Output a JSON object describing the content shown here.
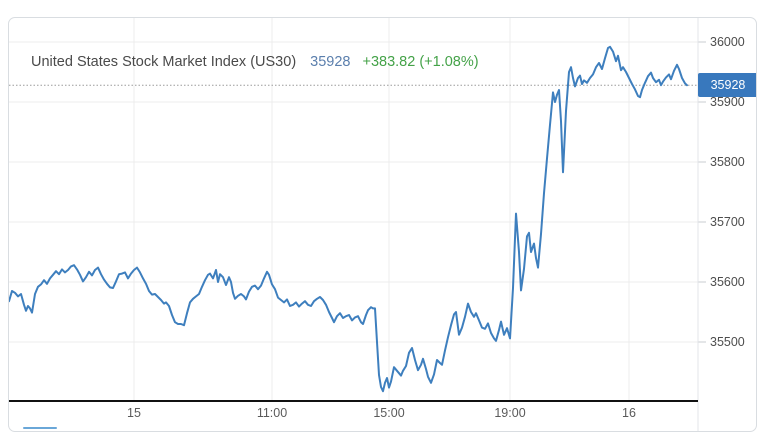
{
  "header": {
    "title": "United States Stock Market Index (US30)",
    "price": "35928",
    "change": "+383.82 (+1.08%)"
  },
  "colors": {
    "series_line": "#3e7fbe",
    "badge_bg": "#3878bd",
    "badge_text": "#ffffff",
    "title_text": "#4a4a4a",
    "price_text": "#5b7fad",
    "change_text": "#44a248",
    "grid": "#ececec",
    "separator": "#e3e5e8",
    "tick": "#c8ccd0",
    "dotted_line": "#9b9b9b",
    "axis_line": "#111111",
    "panel_border": "#d9dde1",
    "accent_underline": "#6aa7d8"
  },
  "chart_data": {
    "type": "line",
    "title": "United States Stock Market Index (US30)",
    "series_name": "US30",
    "last_price": 35928,
    "change_abs": 383.82,
    "change_pct": 1.08,
    "grid": true,
    "legend": false,
    "y_axis_side": "right",
    "ylim": [
      35402,
      36040
    ],
    "y_ticks": [
      36000,
      35900,
      35800,
      35700,
      35600,
      35500
    ],
    "current_price_line": 35928,
    "x_ticks": [
      {
        "label": "15",
        "px": 133
      },
      {
        "label": "11:00",
        "px": 271
      },
      {
        "label": "15:00",
        "px": 388
      },
      {
        "label": "19:00",
        "px": 509
      },
      {
        "label": "16",
        "px": 628
      }
    ],
    "points": [
      [
        8,
        35568
      ],
      [
        11,
        35585
      ],
      [
        14,
        35582
      ],
      [
        17,
        35576
      ],
      [
        20,
        35580
      ],
      [
        23,
        35562
      ],
      [
        25,
        35552
      ],
      [
        27,
        35560
      ],
      [
        29,
        35556
      ],
      [
        31,
        35549
      ],
      [
        34,
        35580
      ],
      [
        37,
        35592
      ],
      [
        40,
        35596
      ],
      [
        43,
        35603
      ],
      [
        46,
        35597
      ],
      [
        49,
        35606
      ],
      [
        52,
        35612
      ],
      [
        55,
        35618
      ],
      [
        58,
        35613
      ],
      [
        61,
        35621
      ],
      [
        64,
        35616
      ],
      [
        67,
        35620
      ],
      [
        70,
        35626
      ],
      [
        73,
        35628
      ],
      [
        76,
        35621
      ],
      [
        79,
        35612
      ],
      [
        82,
        35601
      ],
      [
        85,
        35608
      ],
      [
        88,
        35617
      ],
      [
        91,
        35611
      ],
      [
        94,
        35620
      ],
      [
        97,
        35624
      ],
      [
        100,
        35613
      ],
      [
        103,
        35604
      ],
      [
        106,
        35597
      ],
      [
        109,
        35591
      ],
      [
        112,
        35590
      ],
      [
        115,
        35601
      ],
      [
        118,
        35613
      ],
      [
        121,
        35614
      ],
      [
        124,
        35616
      ],
      [
        127,
        35606
      ],
      [
        130,
        35614
      ],
      [
        133,
        35620
      ],
      [
        136,
        35624
      ],
      [
        139,
        35616
      ],
      [
        142,
        35606
      ],
      [
        145,
        35597
      ],
      [
        148,
        35585
      ],
      [
        151,
        35579
      ],
      [
        154,
        35580
      ],
      [
        157,
        35575
      ],
      [
        160,
        35570
      ],
      [
        163,
        35564
      ],
      [
        165,
        35566
      ],
      [
        168,
        35560
      ],
      [
        171,
        35545
      ],
      [
        174,
        35533
      ],
      [
        177,
        35530
      ],
      [
        180,
        35530
      ],
      [
        183,
        35528
      ],
      [
        186,
        35548
      ],
      [
        189,
        35566
      ],
      [
        192,
        35572
      ],
      [
        195,
        35576
      ],
      [
        198,
        35580
      ],
      [
        201,
        35592
      ],
      [
        204,
        35603
      ],
      [
        207,
        35612
      ],
      [
        209,
        35614
      ],
      [
        212,
        35606
      ],
      [
        215,
        35620
      ],
      [
        217,
        35600
      ],
      [
        219,
        35613
      ],
      [
        222,
        35608
      ],
      [
        225,
        35595
      ],
      [
        228,
        35608
      ],
      [
        230,
        35600
      ],
      [
        232,
        35582
      ],
      [
        234,
        35572
      ],
      [
        237,
        35577
      ],
      [
        240,
        35580
      ],
      [
        243,
        35576
      ],
      [
        245,
        35571
      ],
      [
        248,
        35584
      ],
      [
        251,
        35592
      ],
      [
        254,
        35594
      ],
      [
        257,
        35588
      ],
      [
        260,
        35594
      ],
      [
        263,
        35606
      ],
      [
        266,
        35617
      ],
      [
        268,
        35612
      ],
      [
        271,
        35596
      ],
      [
        274,
        35588
      ],
      [
        277,
        35574
      ],
      [
        280,
        35570
      ],
      [
        283,
        35566
      ],
      [
        286,
        35571
      ],
      [
        289,
        35560
      ],
      [
        292,
        35562
      ],
      [
        295,
        35566
      ],
      [
        298,
        35559
      ],
      [
        301,
        35564
      ],
      [
        304,
        35568
      ],
      [
        307,
        35562
      ],
      [
        310,
        35560
      ],
      [
        313,
        35568
      ],
      [
        316,
        35572
      ],
      [
        319,
        35575
      ],
      [
        322,
        35570
      ],
      [
        325,
        35562
      ],
      [
        328,
        35550
      ],
      [
        331,
        35540
      ],
      [
        333,
        35533
      ],
      [
        336,
        35543
      ],
      [
        339,
        35548
      ],
      [
        342,
        35540
      ],
      [
        345,
        35543
      ],
      [
        348,
        35545
      ],
      [
        351,
        35536
      ],
      [
        354,
        35541
      ],
      [
        357,
        35543
      ],
      [
        360,
        35533
      ],
      [
        362,
        35530
      ],
      [
        365,
        35545
      ],
      [
        367,
        35553
      ],
      [
        370,
        35558
      ],
      [
        372,
        35556
      ],
      [
        374,
        35556
      ],
      [
        376,
        35500
      ],
      [
        378,
        35445
      ],
      [
        380,
        35425
      ],
      [
        382,
        35418
      ],
      [
        384,
        35432
      ],
      [
        386,
        35440
      ],
      [
        388,
        35424
      ],
      [
        390,
        35434
      ],
      [
        393,
        35458
      ],
      [
        396,
        35452
      ],
      [
        398,
        35448
      ],
      [
        400,
        35444
      ],
      [
        402,
        35452
      ],
      [
        405,
        35460
      ],
      [
        408,
        35482
      ],
      [
        411,
        35490
      ],
      [
        414,
        35470
      ],
      [
        417,
        35453
      ],
      [
        420,
        35462
      ],
      [
        422,
        35472
      ],
      [
        425,
        35455
      ],
      [
        427,
        35442
      ],
      [
        430,
        35432
      ],
      [
        433,
        35446
      ],
      [
        436,
        35470
      ],
      [
        439,
        35465
      ],
      [
        441,
        35462
      ],
      [
        444,
        35486
      ],
      [
        447,
        35508
      ],
      [
        450,
        35528
      ],
      [
        453,
        35546
      ],
      [
        455,
        35550
      ],
      [
        458,
        35512
      ],
      [
        461,
        35524
      ],
      [
        464,
        35542
      ],
      [
        467,
        35564
      ],
      [
        470,
        35550
      ],
      [
        473,
        35542
      ],
      [
        475,
        35548
      ],
      [
        478,
        35536
      ],
      [
        481,
        35524
      ],
      [
        484,
        35522
      ],
      [
        487,
        35531
      ],
      [
        490,
        35515
      ],
      [
        493,
        35506
      ],
      [
        495,
        35502
      ],
      [
        498,
        35520
      ],
      [
        500,
        35534
      ],
      [
        503,
        35512
      ],
      [
        506,
        35523
      ],
      [
        509,
        35506
      ],
      [
        512,
        35590
      ],
      [
        515,
        35714
      ],
      [
        518,
        35650
      ],
      [
        520,
        35586
      ],
      [
        523,
        35622
      ],
      [
        526,
        35676
      ],
      [
        528,
        35682
      ],
      [
        530,
        35650
      ],
      [
        533,
        35664
      ],
      [
        535,
        35640
      ],
      [
        537,
        35624
      ],
      [
        540,
        35680
      ],
      [
        543,
        35748
      ],
      [
        546,
        35806
      ],
      [
        549,
        35862
      ],
      [
        552,
        35916
      ],
      [
        554,
        35900
      ],
      [
        556,
        35912
      ],
      [
        558,
        35920
      ],
      [
        560,
        35868
      ],
      [
        562,
        35783
      ],
      [
        565,
        35885
      ],
      [
        568,
        35950
      ],
      [
        570,
        35958
      ],
      [
        572,
        35940
      ],
      [
        574,
        35926
      ],
      [
        577,
        35940
      ],
      [
        579,
        35944
      ],
      [
        581,
        35930
      ],
      [
        583,
        35936
      ],
      [
        586,
        35932
      ],
      [
        589,
        35940
      ],
      [
        592,
        35946
      ],
      [
        595,
        35958
      ],
      [
        598,
        35965
      ],
      [
        601,
        35955
      ],
      [
        604,
        35973
      ],
      [
        607,
        35990
      ],
      [
        609,
        35992
      ],
      [
        612,
        35984
      ],
      [
        615,
        35968
      ],
      [
        617,
        35977
      ],
      [
        620,
        35953
      ],
      [
        622,
        35958
      ],
      [
        625,
        35950
      ],
      [
        628,
        35940
      ],
      [
        631,
        35930
      ],
      [
        634,
        35921
      ],
      [
        637,
        35910
      ],
      [
        639,
        35908
      ],
      [
        641,
        35920
      ],
      [
        644,
        35932
      ],
      [
        647,
        35943
      ],
      [
        650,
        35949
      ],
      [
        652,
        35940
      ],
      [
        655,
        35933
      ],
      [
        658,
        35937
      ],
      [
        660,
        35928
      ],
      [
        662,
        35934
      ],
      [
        665,
        35941
      ],
      [
        668,
        35946
      ],
      [
        670,
        35938
      ],
      [
        673,
        35952
      ],
      [
        676,
        35962
      ],
      [
        678,
        35955
      ],
      [
        681,
        35940
      ],
      [
        684,
        35931
      ],
      [
        686,
        35928
      ]
    ]
  }
}
